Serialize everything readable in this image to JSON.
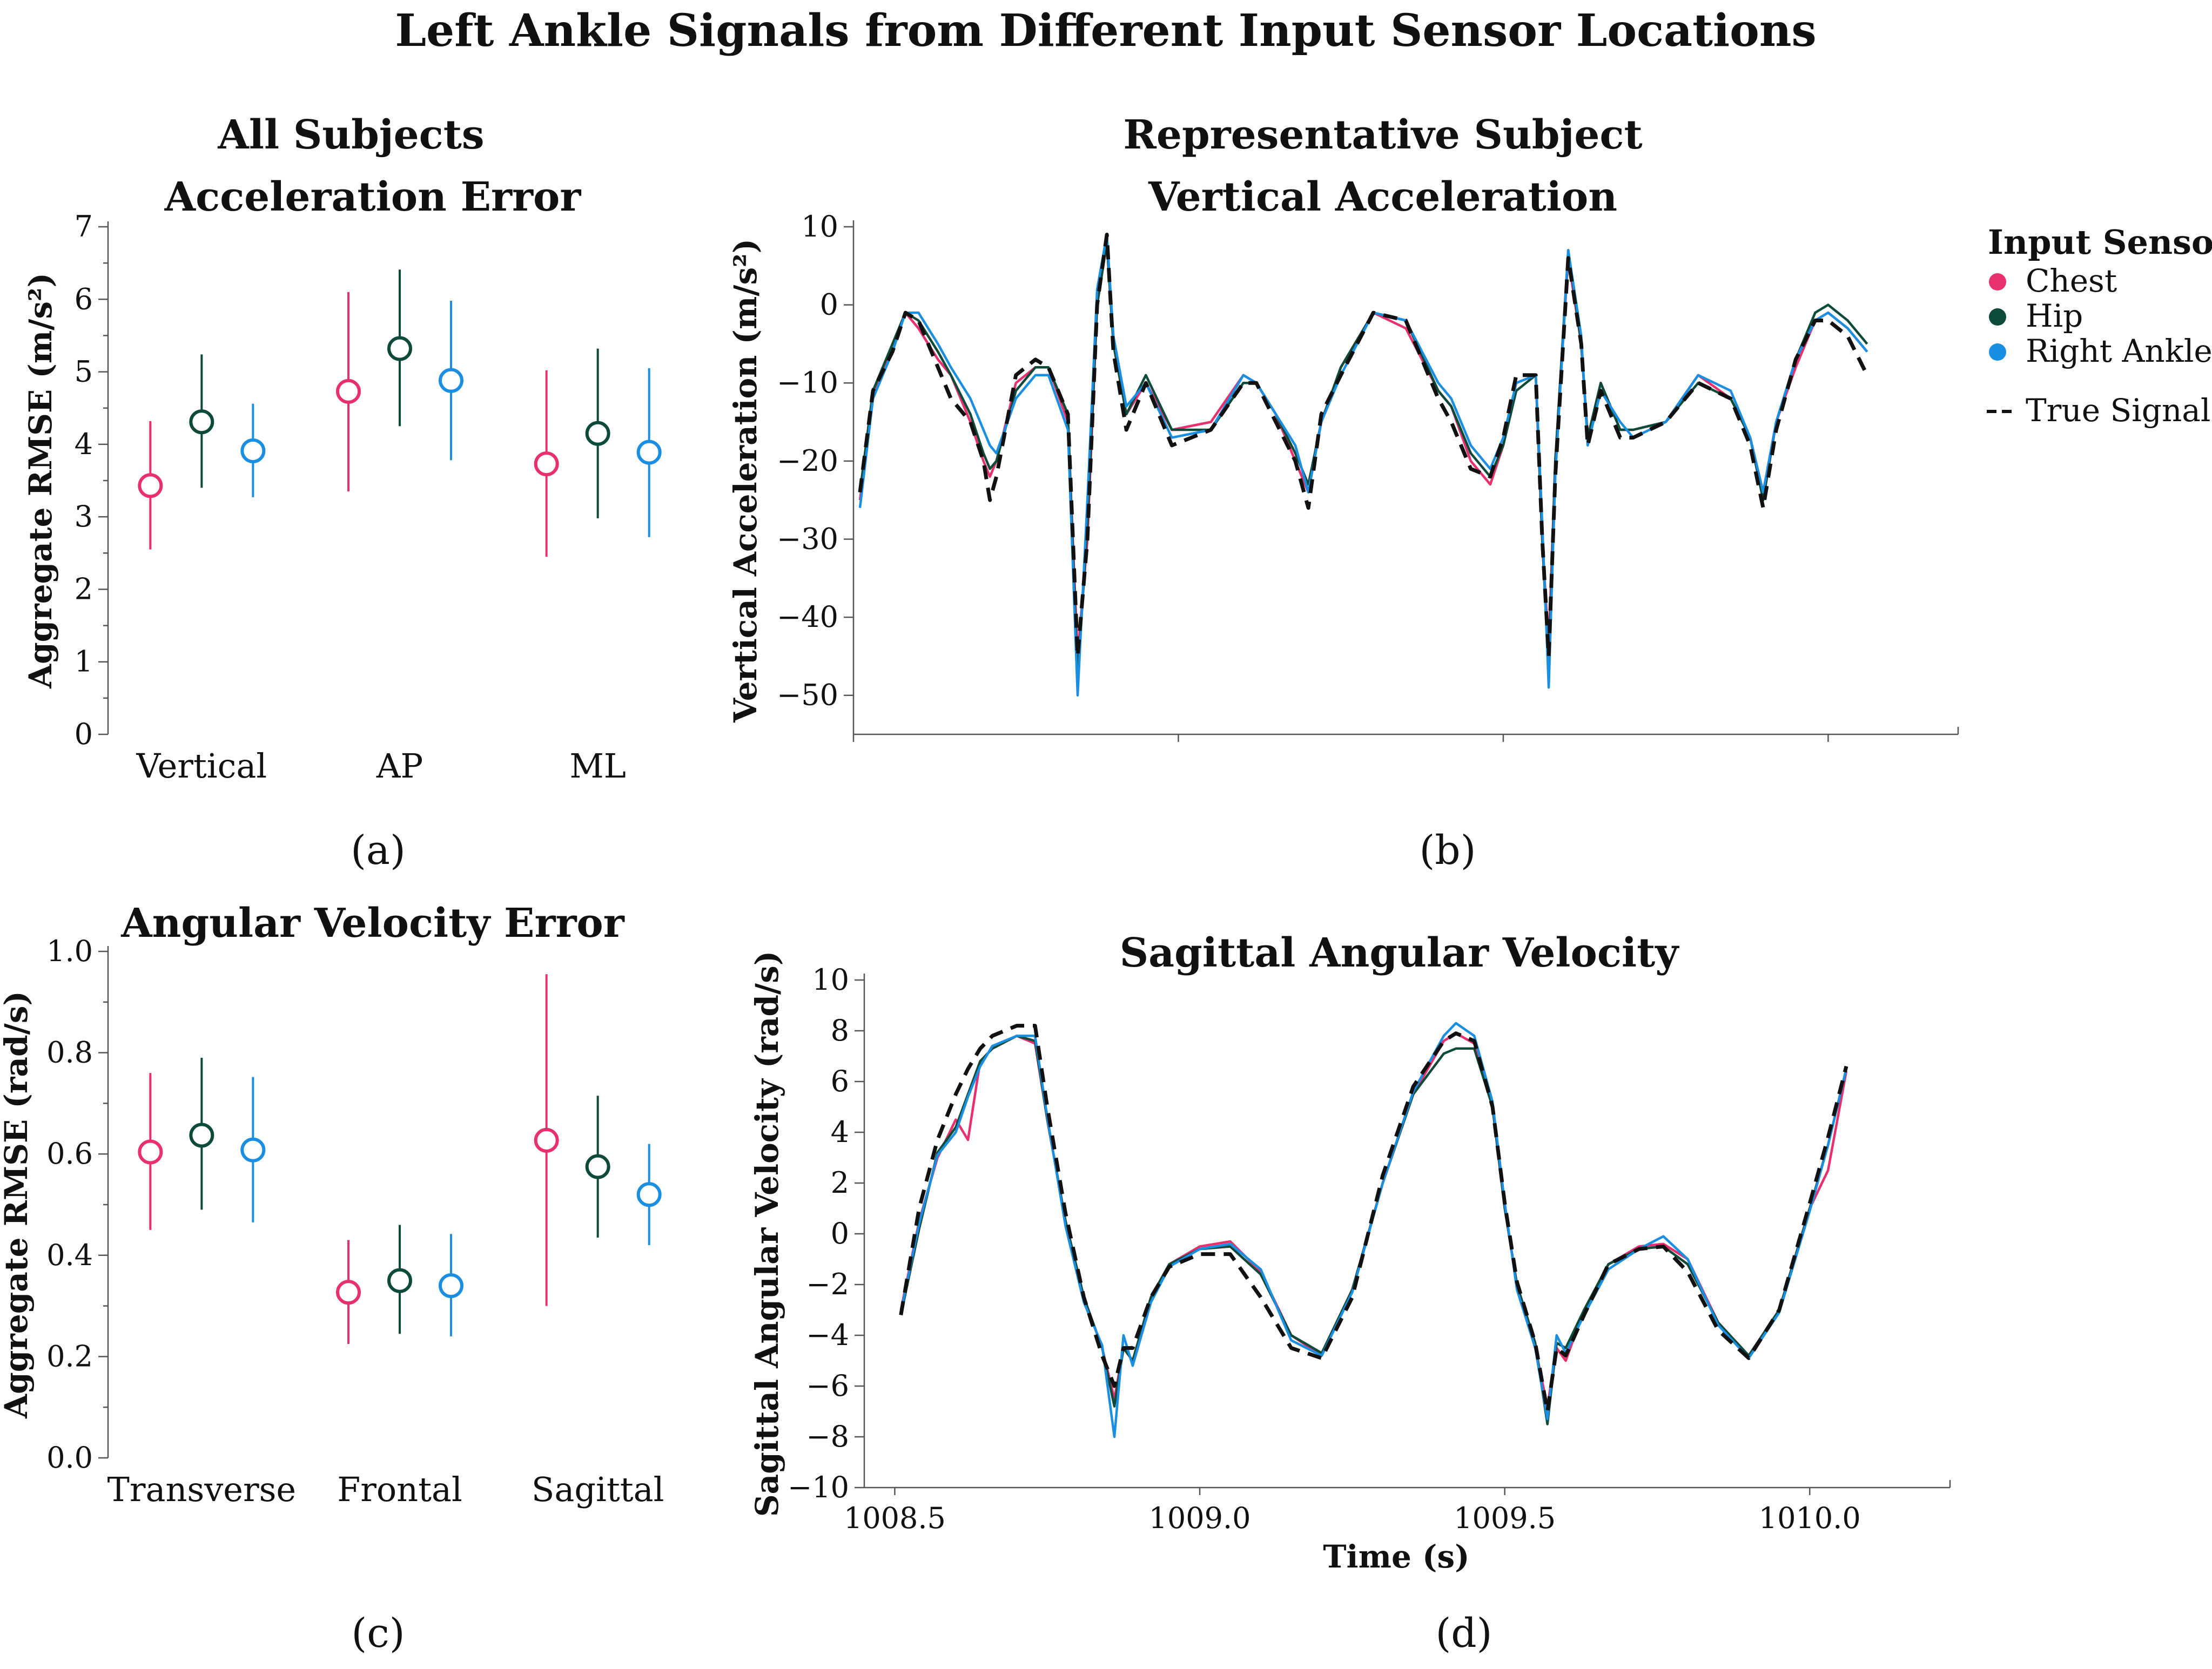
{
  "figure": {
    "title": "Left Ankle Signals from Different Input Sensor Locations",
    "section_left": "All Subjects",
    "section_right": "Representative Subject"
  },
  "legend": {
    "title": "Input Sensor",
    "items": [
      {
        "name": "Chest",
        "color": "#e8306e",
        "marker": "dot"
      },
      {
        "name": "Hip",
        "color": "#0d4a3a",
        "marker": "dot"
      },
      {
        "name": "Right Ankle",
        "color": "#1a8ee0",
        "marker": "dot"
      },
      {
        "name": "True Signal",
        "color": "#111111",
        "marker": "dash"
      }
    ]
  },
  "chart_data": [
    {
      "id": "a",
      "panel_label": "(a)",
      "type": "scatter",
      "title": "Acceleration Error",
      "ylabel": "Aggregate RMSE (m/s²)",
      "ylim": [
        0,
        7
      ],
      "yticks": [
        "0",
        "1",
        "2",
        "3",
        "4",
        "5",
        "6",
        "7"
      ],
      "categories": [
        "Vertical",
        "AP",
        "ML"
      ],
      "series": [
        {
          "name": "Chest",
          "color": "#e8306e",
          "values": [
            3.43,
            4.73,
            3.73
          ],
          "lower": [
            2.55,
            3.35,
            2.45
          ],
          "upper": [
            4.32,
            6.1,
            5.02
          ]
        },
        {
          "name": "Hip",
          "color": "#0d4a3a",
          "values": [
            4.31,
            5.32,
            4.15
          ],
          "lower": [
            3.4,
            4.25,
            2.98
          ],
          "upper": [
            5.24,
            6.41,
            5.32
          ]
        },
        {
          "name": "Right Ankle",
          "color": "#1a8ee0",
          "values": [
            3.91,
            4.88,
            3.89
          ],
          "lower": [
            3.27,
            3.78,
            2.72
          ],
          "upper": [
            4.56,
            5.98,
            5.05
          ]
        }
      ]
    },
    {
      "id": "b",
      "panel_label": "(b)",
      "type": "line",
      "title": "Vertical Acceleration",
      "ylabel": "Vertical Acceleration (m/s²)",
      "xlim": [
        1008.5,
        1010.2
      ],
      "ylim": [
        -55,
        10
      ],
      "yticks": [
        "10",
        "0",
        "−10",
        "−20",
        "−30",
        "−40",
        "−50"
      ],
      "xticks": [
        1008.5,
        1009.0,
        1009.5,
        1010.0
      ],
      "show_xtick_labels": false,
      "x": [
        1008.51,
        1008.53,
        1008.56,
        1008.58,
        1008.6,
        1008.63,
        1008.65,
        1008.68,
        1008.7,
        1008.71,
        1008.72,
        1008.75,
        1008.78,
        1008.8,
        1008.83,
        1008.845,
        1008.86,
        1008.875,
        1008.89,
        1008.9,
        1008.92,
        1008.95,
        1008.99,
        1009.05,
        1009.1,
        1009.12,
        1009.15,
        1009.18,
        1009.2,
        1009.22,
        1009.25,
        1009.3,
        1009.35,
        1009.4,
        1009.42,
        1009.45,
        1009.48,
        1009.5,
        1009.52,
        1009.55,
        1009.56,
        1009.57,
        1009.58,
        1009.6,
        1009.62,
        1009.63,
        1009.65,
        1009.68,
        1009.7,
        1009.75,
        1009.8,
        1009.85,
        1009.88,
        1009.9,
        1009.92,
        1009.95,
        1009.98,
        1010.0,
        1010.03,
        1010.06
      ],
      "series": [
        {
          "name": "Chest",
          "color": "#e8306e",
          "values": [
            -25,
            -12,
            -5,
            -1,
            -3,
            -7,
            -9,
            -15,
            -20,
            -22,
            -20,
            -10,
            -8,
            -8,
            -15,
            -45,
            -30,
            0,
            8,
            -5,
            -14,
            -10,
            -16,
            -15,
            -9,
            -10,
            -14,
            -20,
            -24,
            -15,
            -8,
            -1,
            -3,
            -11,
            -13,
            -20,
            -23,
            -18,
            -10,
            -9,
            -30,
            -44,
            -20,
            6,
            -5,
            -17,
            -10,
            -16,
            -16,
            -15,
            -9,
            -12,
            -17,
            -24,
            -15,
            -8,
            -2,
            -1,
            -3,
            -6
          ]
        },
        {
          "name": "Hip",
          "color": "#0d4a3a",
          "values": [
            -24,
            -11,
            -5,
            -1,
            -2,
            -6,
            -9,
            -14,
            -19,
            -21,
            -20,
            -11,
            -8,
            -8,
            -14,
            -48,
            -28,
            0,
            8,
            -5,
            -14,
            -9,
            -16,
            -16,
            -10,
            -10,
            -14,
            -19,
            -23,
            -15,
            -8,
            -1,
            -2,
            -11,
            -13,
            -19,
            -22,
            -18,
            -11,
            -9,
            -30,
            -47,
            -20,
            7,
            -5,
            -17,
            -10,
            -16,
            -16,
            -15,
            -10,
            -12,
            -17,
            -25,
            -15,
            -7,
            -1,
            0,
            -2,
            -5
          ]
        },
        {
          "name": "Right Ankle",
          "color": "#1a8ee0",
          "values": [
            -26,
            -12,
            -6,
            -1,
            -1,
            -5,
            -8,
            -12,
            -16,
            -18,
            -19,
            -12,
            -9,
            -9,
            -16,
            -50,
            -25,
            2,
            9,
            -4,
            -13,
            -10,
            -17,
            -16,
            -9,
            -10,
            -14,
            -18,
            -24,
            -15,
            -9,
            -1,
            -2,
            -10,
            -12,
            -18,
            -21,
            -17,
            -10,
            -9,
            -28,
            -49,
            -22,
            7,
            -4,
            -18,
            -11,
            -15,
            -17,
            -15,
            -9,
            -11,
            -17,
            -24,
            -15,
            -7,
            -2,
            -1,
            -3,
            -6
          ]
        },
        {
          "name": "True Signal",
          "color": "#111111",
          "dashed": true,
          "values": [
            -24,
            -11,
            -6,
            -1,
            -2,
            -8,
            -12,
            -15,
            -20,
            -25,
            -22,
            -9,
            -7,
            -8,
            -14,
            -45,
            -30,
            0,
            9,
            -6,
            -16,
            -10,
            -18,
            -16,
            -10,
            -10,
            -15,
            -20,
            -26,
            -14,
            -9,
            -1,
            -2,
            -12,
            -15,
            -21,
            -22,
            -17,
            -9,
            -9,
            -30,
            -45,
            -22,
            6,
            -5,
            -18,
            -11,
            -17,
            -17,
            -15,
            -10,
            -12,
            -18,
            -26,
            -16,
            -7,
            -2,
            -2,
            -4,
            -9
          ]
        }
      ]
    },
    {
      "id": "c",
      "panel_label": "(c)",
      "type": "scatter",
      "title": "Angular Velocity Error",
      "ylabel": "Aggregate RMSE (rad/s)",
      "ylim": [
        0,
        1.0
      ],
      "yticks": [
        "0.0",
        "0.2",
        "0.4",
        "0.6",
        "0.8",
        "1.0"
      ],
      "categories": [
        "Transverse",
        "Frontal",
        "Sagittal"
      ],
      "series": [
        {
          "name": "Chest",
          "color": "#e8306e",
          "values": [
            0.604,
            0.327,
            0.627
          ],
          "lower": [
            0.45,
            0.225,
            0.3
          ],
          "upper": [
            0.76,
            0.43,
            0.955
          ]
        },
        {
          "name": "Hip",
          "color": "#0d4a3a",
          "values": [
            0.637,
            0.35,
            0.575
          ],
          "lower": [
            0.49,
            0.245,
            0.435
          ],
          "upper": [
            0.79,
            0.46,
            0.715
          ]
        },
        {
          "name": "Right Ankle",
          "color": "#1a8ee0",
          "values": [
            0.608,
            0.34,
            0.52
          ],
          "lower": [
            0.465,
            0.24,
            0.42
          ],
          "upper": [
            0.752,
            0.442,
            0.62
          ]
        }
      ]
    },
    {
      "id": "d",
      "panel_label": "(d)",
      "type": "line",
      "title": "Sagittal Angular Velocity",
      "ylabel": "Sagittal Angular Velocity (rad/s)",
      "xlabel": "Time (s)",
      "xlim": [
        1008.45,
        1010.23
      ],
      "ylim": [
        -10,
        10
      ],
      "yticks": [
        "10",
        "8",
        "6",
        "4",
        "2",
        "0",
        "−2",
        "−4",
        "−6",
        "−8",
        "−10"
      ],
      "xticks": [
        1008.5,
        1009.0,
        1009.5,
        1010.0
      ],
      "xtick_labels": [
        "1008.5",
        "1009.0",
        "1009.5",
        "1010.0"
      ],
      "x": [
        1008.51,
        1008.54,
        1008.57,
        1008.6,
        1008.62,
        1008.64,
        1008.66,
        1008.7,
        1008.73,
        1008.75,
        1008.78,
        1008.81,
        1008.84,
        1008.86,
        1008.875,
        1008.89,
        1008.92,
        1008.95,
        1009.0,
        1009.05,
        1009.1,
        1009.15,
        1009.2,
        1009.25,
        1009.3,
        1009.35,
        1009.4,
        1009.42,
        1009.45,
        1009.48,
        1009.5,
        1009.52,
        1009.55,
        1009.57,
        1009.585,
        1009.6,
        1009.63,
        1009.67,
        1009.72,
        1009.76,
        1009.8,
        1009.85,
        1009.9,
        1009.95,
        1010.0,
        1010.03,
        1010.06
      ],
      "series": [
        {
          "name": "Chest",
          "color": "#e8306e",
          "values": [
            -3,
            0.5,
            3,
            4.5,
            3.7,
            6.8,
            7.3,
            7.8,
            7.5,
            4.5,
            0.5,
            -2.5,
            -4.5,
            -6.5,
            -4.5,
            -5,
            -2.5,
            -1.2,
            -0.5,
            -0.3,
            -1.5,
            -4,
            -4.8,
            -2.2,
            2,
            5.5,
            7.6,
            7.9,
            7.5,
            5,
            1,
            -2,
            -4.5,
            -6.8,
            -4.5,
            -5,
            -3,
            -1.2,
            -0.5,
            -0.4,
            -1,
            -3.5,
            -4.8,
            -3,
            1,
            2.5,
            6.4
          ]
        },
        {
          "name": "Hip",
          "color": "#0d4a3a",
          "values": [
            -3.2,
            0.2,
            3.2,
            4.2,
            5.5,
            6.8,
            7.3,
            7.8,
            7.6,
            4.5,
            0.5,
            -2.5,
            -4.5,
            -6.8,
            -4.5,
            -5,
            -2.5,
            -1.2,
            -0.6,
            -0.5,
            -1.6,
            -4,
            -4.7,
            -2.2,
            2,
            5.5,
            7.1,
            7.3,
            7.3,
            5,
            1,
            -2,
            -4.3,
            -7.5,
            -4.3,
            -4.5,
            -3,
            -1.2,
            -0.6,
            -0.5,
            -1.2,
            -3.5,
            -4.8,
            -3,
            1,
            3.5,
            6.5
          ]
        },
        {
          "name": "Right Ankle",
          "color": "#1a8ee0",
          "values": [
            -3.1,
            0.4,
            3.1,
            4,
            5.4,
            6.6,
            7.4,
            7.8,
            7.8,
            4.6,
            0.3,
            -2.7,
            -4.4,
            -8,
            -4,
            -5.2,
            -2.7,
            -1.3,
            -0.6,
            -0.4,
            -1.4,
            -4.2,
            -4.8,
            -2.3,
            2,
            5.6,
            7.8,
            8.3,
            7.8,
            5.2,
            1.2,
            -2.2,
            -4.5,
            -7.3,
            -4,
            -4.7,
            -3.2,
            -1.4,
            -0.6,
            -0.1,
            -1,
            -3.6,
            -4.9,
            -3.1,
            0.9,
            3.5,
            6.5
          ]
        },
        {
          "name": "True Signal",
          "color": "#111111",
          "dashed": true,
          "values": [
            -3.2,
            1,
            3.7,
            5.5,
            6.5,
            7.3,
            7.8,
            8.2,
            8.2,
            5,
            0.8,
            -2.5,
            -4.8,
            -6,
            -4.5,
            -4.5,
            -2.5,
            -1.3,
            -0.8,
            -0.8,
            -2.5,
            -4.5,
            -4.9,
            -2.5,
            2.3,
            5.8,
            7.6,
            7.9,
            7.6,
            5,
            1.2,
            -1.9,
            -4.3,
            -7,
            -4.5,
            -4.8,
            -3.2,
            -1.2,
            -0.6,
            -0.5,
            -1.5,
            -3.8,
            -4.9,
            -3,
            1.2,
            3.8,
            6.6
          ]
        }
      ]
    }
  ]
}
